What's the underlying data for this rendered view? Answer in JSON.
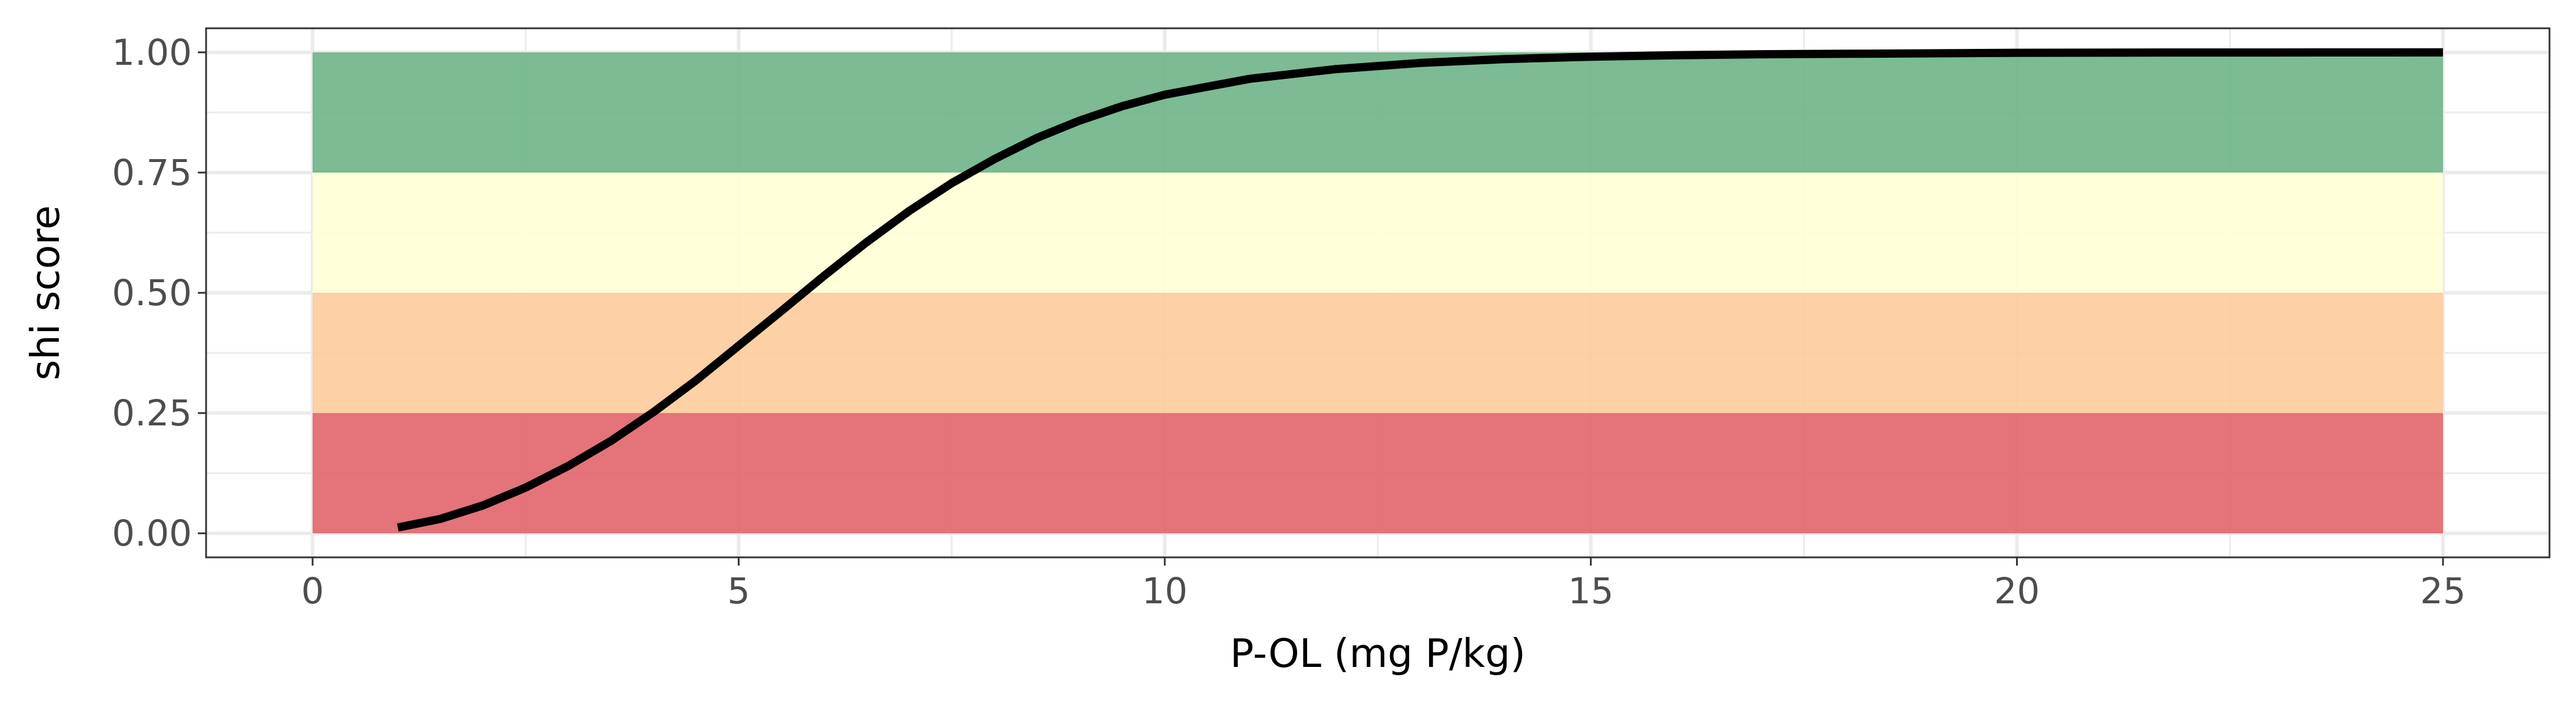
{
  "chart_data": {
    "type": "line",
    "title": "",
    "xlabel": "P-OL (mg P/kg)",
    "ylabel": "shi score",
    "xlim": [
      -1.25,
      26.25
    ],
    "ylim": [
      -0.05,
      1.05
    ],
    "x_ticks": [
      0,
      5,
      10,
      15,
      20,
      25
    ],
    "x_tick_labels": [
      "0",
      "5",
      "10",
      "15",
      "20",
      "25"
    ],
    "y_ticks": [
      0,
      0.25,
      0.5,
      0.75,
      1
    ],
    "y_tick_labels": [
      "0.00",
      "0.25",
      "0.50",
      "0.75",
      "1.00"
    ],
    "grid": true,
    "bands": [
      {
        "x_range": [
          0,
          25
        ],
        "y_range": [
          0.0,
          0.25
        ],
        "color": "#e06166"
      },
      {
        "x_range": [
          0,
          25
        ],
        "y_range": [
          0.25,
          0.5
        ],
        "color": "#fdca9a"
      },
      {
        "x_range": [
          0,
          25
        ],
        "y_range": [
          0.5,
          0.75
        ],
        "color": "#ffffd5"
      },
      {
        "x_range": [
          0,
          25
        ],
        "y_range": [
          0.75,
          1.0
        ],
        "color": "#6ab284"
      }
    ],
    "series": [
      {
        "color": "#000000",
        "x": [
          1,
          1.5,
          2,
          2.5,
          3,
          3.5,
          4,
          4.5,
          5,
          5.5,
          6,
          6.5,
          7,
          7.5,
          8,
          8.5,
          9,
          9.5,
          10,
          11,
          12,
          13,
          14,
          15,
          16,
          17,
          18,
          19,
          20,
          21,
          22,
          23,
          24,
          25
        ],
        "y": [
          0.012,
          0.03,
          0.058,
          0.095,
          0.14,
          0.192,
          0.252,
          0.318,
          0.39,
          0.462,
          0.535,
          0.605,
          0.67,
          0.728,
          0.778,
          0.822,
          0.858,
          0.888,
          0.912,
          0.945,
          0.965,
          0.978,
          0.986,
          0.991,
          0.994,
          0.996,
          0.997,
          0.998,
          0.999,
          0.9993,
          0.9996,
          0.9997,
          0.9998,
          0.9999
        ]
      }
    ]
  }
}
